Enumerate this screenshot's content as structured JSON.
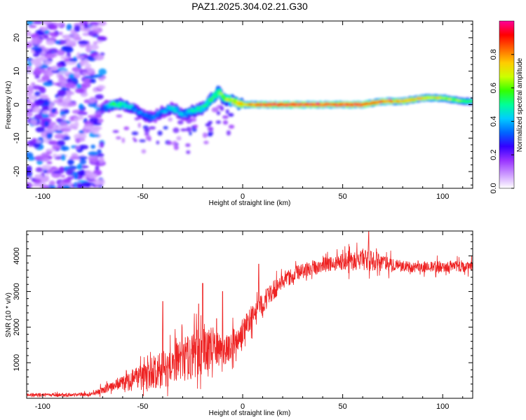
{
  "title": "PAZ1.2025.304.02.21.G30",
  "chart_data": [
    {
      "type": "heatmap",
      "panel": "spectrogram",
      "xlabel": "Height of straight line (km)",
      "ylabel": "Frequency (Hz)",
      "xlim": [
        -108,
        115
      ],
      "ylim": [
        -25,
        25
      ],
      "xticks": [
        -100,
        -50,
        0,
        50,
        100
      ],
      "yticks": [
        -20,
        -10,
        0,
        10,
        20
      ],
      "xtick_labels": [
        "-100",
        "-50",
        "0",
        "50",
        "100"
      ],
      "ytick_labels": [
        "-20",
        "-10",
        "0",
        "10",
        "20"
      ],
      "colorbar": {
        "label": "Normalized spectral amplitude",
        "range": [
          0,
          1
        ],
        "ticks": [
          0.0,
          0.2,
          0.4,
          0.6,
          0.8
        ],
        "tick_labels": [
          "0.0",
          "0.2",
          "0.4",
          "0.6",
          "0.8"
        ],
        "colors": [
          "#ffffff",
          "#cc99ff",
          "#9933ff",
          "#3300ff",
          "#0066ff",
          "#00ccff",
          "#00ff99",
          "#33ff00",
          "#ccff00",
          "#ffcc00",
          "#ff6600",
          "#ff0000",
          "#ff0099"
        ]
      },
      "noise_region_x": [
        -108,
        -70
      ],
      "ridge": {
        "x": [
          -70,
          -65,
          -60,
          -55,
          -50,
          -45,
          -40,
          -35,
          -30,
          -25,
          -20,
          -15,
          -12,
          -10,
          -5,
          0,
          10,
          20,
          30,
          40,
          50,
          60,
          70,
          80,
          90,
          100,
          110,
          115
        ],
        "freq": [
          -1,
          0,
          0,
          -1,
          -3,
          -4,
          -2,
          -1,
          -3,
          -2,
          -1,
          2,
          4,
          2,
          1,
          0,
          0,
          0,
          0,
          0,
          0,
          0,
          1,
          1,
          2,
          2,
          1,
          1
        ],
        "amplitude": [
          0.3,
          0.55,
          0.5,
          0.4,
          0.35,
          0.35,
          0.4,
          0.45,
          0.4,
          0.45,
          0.5,
          0.55,
          0.6,
          0.6,
          0.7,
          0.75,
          0.95,
          0.95,
          0.95,
          0.9,
          0.95,
          0.95,
          0.85,
          0.8,
          0.75,
          0.7,
          0.6,
          0.55
        ]
      }
    },
    {
      "type": "line",
      "panel": "snr",
      "xlabel": "Height of straight line (km)",
      "ylabel": "SNR (10 * v/v)",
      "xlim": [
        -108,
        115
      ],
      "ylim": [
        0,
        4700
      ],
      "xticks": [
        -100,
        -50,
        0,
        50,
        100
      ],
      "yticks": [
        1000,
        2000,
        3000,
        4000
      ],
      "xtick_labels": [
        "-100",
        "-50",
        "0",
        "50",
        "100"
      ],
      "ytick_labels": [
        "1000",
        "2000",
        "3000",
        "4000"
      ],
      "color": "#ee2222",
      "envelope": {
        "x": [
          -108,
          -90,
          -75,
          -70,
          -65,
          -60,
          -55,
          -50,
          -45,
          -40,
          -35,
          -30,
          -25,
          -20,
          -15,
          -10,
          -5,
          0,
          5,
          10,
          15,
          20,
          30,
          40,
          50,
          60,
          70,
          80,
          90,
          100,
          110,
          115
        ],
        "mean": [
          100,
          90,
          110,
          220,
          380,
          420,
          520,
          600,
          720,
          800,
          900,
          1050,
          1200,
          1350,
          1450,
          1300,
          1500,
          1900,
          2300,
          2700,
          3000,
          3300,
          3600,
          3750,
          3850,
          3900,
          3800,
          3700,
          3700,
          3700,
          3700,
          3700
        ],
        "spread": [
          60,
          60,
          70,
          150,
          200,
          250,
          400,
          450,
          600,
          700,
          700,
          800,
          800,
          850,
          700,
          500,
          500,
          450,
          400,
          400,
          350,
          300,
          250,
          250,
          300,
          400,
          300,
          200,
          200,
          200,
          200,
          200
        ]
      },
      "spikes": [
        {
          "x": -40,
          "y": 2720
        },
        {
          "x": -20,
          "y": 3230
        },
        {
          "x": -10,
          "y": 3000
        },
        {
          "x": 8,
          "y": 3770
        },
        {
          "x": 63,
          "y": 4680
        },
        {
          "x": -22,
          "y": 2650
        },
        {
          "x": -13,
          "y": 2240
        }
      ]
    }
  ]
}
